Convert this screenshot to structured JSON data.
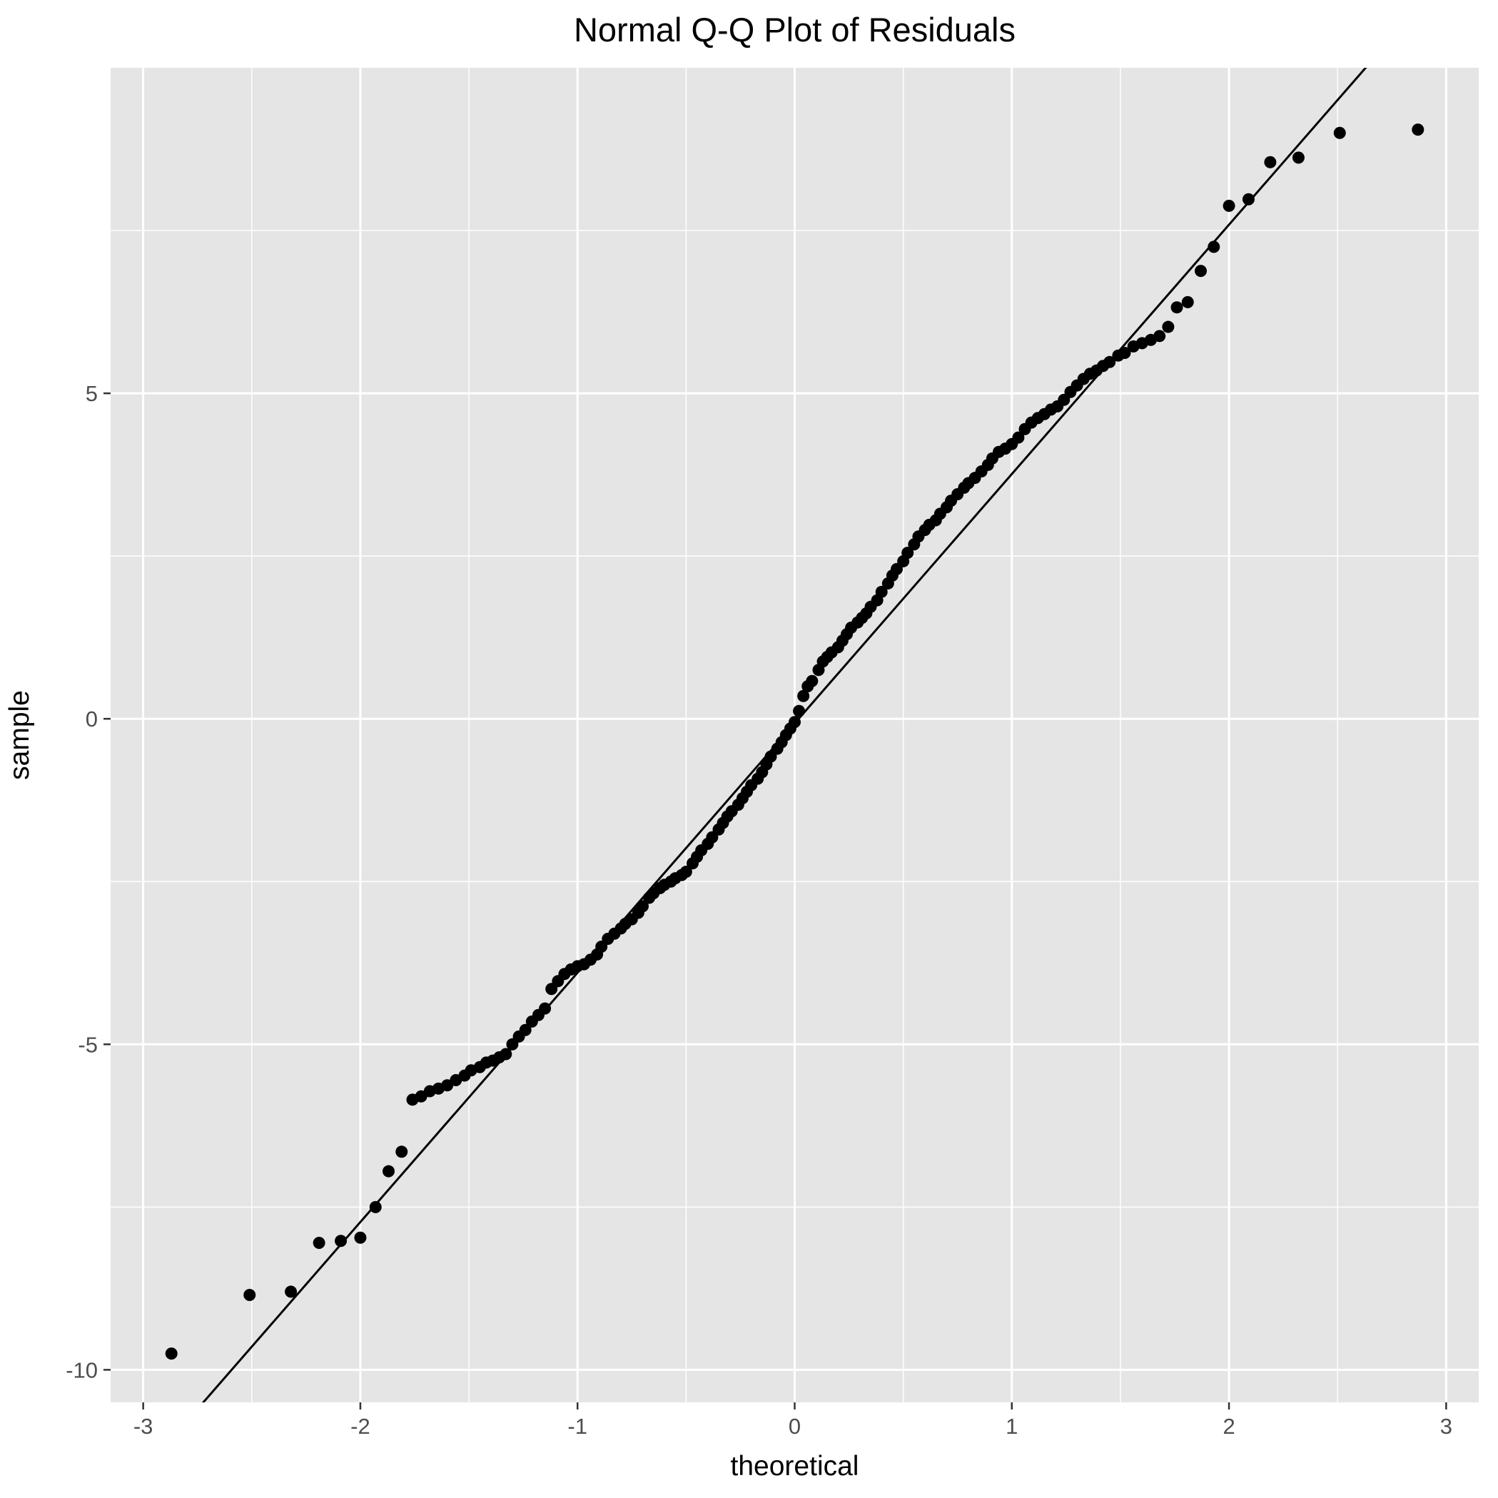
{
  "chart_data": {
    "type": "scatter",
    "title": "Normal Q-Q Plot of Residuals",
    "xlabel": "theoretical",
    "ylabel": "sample",
    "xlim": [
      -3.15,
      3.15
    ],
    "ylim": [
      -10.5,
      10.0
    ],
    "x_ticks": [
      -3,
      -2,
      -1,
      0,
      1,
      2,
      3
    ],
    "x_tick_labels": [
      "-3",
      "-2",
      "-1",
      "0",
      "1",
      "2",
      "3"
    ],
    "y_ticks": [
      -10,
      -5,
      0,
      5
    ],
    "y_tick_labels": [
      "-10",
      "-5",
      "0",
      "5"
    ],
    "grid": true,
    "legend": "none",
    "reference_line": {
      "slope": 3.83,
      "intercept": -0.07
    },
    "colors": {
      "panel_background": "#e5e5e5",
      "grid": "#ffffff",
      "points": "#000000",
      "line": "#000000",
      "tick_label": "#4d4d4d"
    },
    "points": [
      [
        -2.87,
        -9.75
      ],
      [
        -2.51,
        -8.85
      ],
      [
        -2.32,
        -8.8
      ],
      [
        -2.19,
        -8.05
      ],
      [
        -2.09,
        -8.02
      ],
      [
        -2.0,
        -7.97
      ],
      [
        -1.93,
        -7.5
      ],
      [
        -1.87,
        -6.95
      ],
      [
        -1.81,
        -6.65
      ],
      [
        -1.76,
        -5.85
      ],
      [
        -1.72,
        -5.8
      ],
      [
        -1.68,
        -5.72
      ],
      [
        -1.64,
        -5.68
      ],
      [
        -1.6,
        -5.63
      ],
      [
        -1.56,
        -5.55
      ],
      [
        -1.52,
        -5.48
      ],
      [
        -1.49,
        -5.4
      ],
      [
        -1.45,
        -5.35
      ],
      [
        -1.42,
        -5.28
      ],
      [
        -1.39,
        -5.25
      ],
      [
        -1.36,
        -5.2
      ],
      [
        -1.33,
        -5.15
      ],
      [
        -1.3,
        -5.0
      ],
      [
        -1.27,
        -4.88
      ],
      [
        -1.24,
        -4.78
      ],
      [
        -1.21,
        -4.65
      ],
      [
        -1.18,
        -4.55
      ],
      [
        -1.15,
        -4.45
      ],
      [
        -1.12,
        -4.15
      ],
      [
        -1.09,
        -4.03
      ],
      [
        -1.06,
        -3.92
      ],
      [
        -1.03,
        -3.85
      ],
      [
        -1.0,
        -3.8
      ],
      [
        -0.97,
        -3.77
      ],
      [
        -0.94,
        -3.7
      ],
      [
        -0.91,
        -3.62
      ],
      [
        -0.89,
        -3.5
      ],
      [
        -0.86,
        -3.38
      ],
      [
        -0.83,
        -3.3
      ],
      [
        -0.8,
        -3.22
      ],
      [
        -0.78,
        -3.15
      ],
      [
        -0.75,
        -3.08
      ],
      [
        -0.72,
        -2.98
      ],
      [
        -0.7,
        -2.88
      ],
      [
        -0.67,
        -2.75
      ],
      [
        -0.65,
        -2.68
      ],
      [
        -0.62,
        -2.6
      ],
      [
        -0.6,
        -2.55
      ],
      [
        -0.57,
        -2.5
      ],
      [
        -0.55,
        -2.45
      ],
      [
        -0.52,
        -2.4
      ],
      [
        -0.5,
        -2.35
      ],
      [
        -0.47,
        -2.22
      ],
      [
        -0.45,
        -2.12
      ],
      [
        -0.43,
        -2.02
      ],
      [
        -0.4,
        -1.92
      ],
      [
        -0.38,
        -1.82
      ],
      [
        -0.35,
        -1.7
      ],
      [
        -0.33,
        -1.6
      ],
      [
        -0.31,
        -1.5
      ],
      [
        -0.29,
        -1.42
      ],
      [
        -0.26,
        -1.32
      ],
      [
        -0.24,
        -1.22
      ],
      [
        -0.22,
        -1.12
      ],
      [
        -0.2,
        -1.02
      ],
      [
        -0.17,
        -0.92
      ],
      [
        -0.15,
        -0.82
      ],
      [
        -0.13,
        -0.7
      ],
      [
        -0.11,
        -0.58
      ],
      [
        -0.08,
        -0.46
      ],
      [
        -0.06,
        -0.36
      ],
      [
        -0.04,
        -0.25
      ],
      [
        -0.02,
        -0.15
      ],
      [
        0.0,
        -0.05
      ],
      [
        0.02,
        0.12
      ],
      [
        0.04,
        0.35
      ],
      [
        0.06,
        0.5
      ],
      [
        0.08,
        0.58
      ],
      [
        0.11,
        0.75
      ],
      [
        0.13,
        0.88
      ],
      [
        0.15,
        0.95
      ],
      [
        0.17,
        1.02
      ],
      [
        0.2,
        1.1
      ],
      [
        0.22,
        1.2
      ],
      [
        0.24,
        1.3
      ],
      [
        0.26,
        1.4
      ],
      [
        0.29,
        1.48
      ],
      [
        0.31,
        1.55
      ],
      [
        0.33,
        1.62
      ],
      [
        0.35,
        1.72
      ],
      [
        0.38,
        1.82
      ],
      [
        0.4,
        1.95
      ],
      [
        0.43,
        2.08
      ],
      [
        0.45,
        2.2
      ],
      [
        0.47,
        2.3
      ],
      [
        0.5,
        2.42
      ],
      [
        0.52,
        2.55
      ],
      [
        0.55,
        2.68
      ],
      [
        0.57,
        2.8
      ],
      [
        0.6,
        2.9
      ],
      [
        0.62,
        2.98
      ],
      [
        0.65,
        3.05
      ],
      [
        0.67,
        3.15
      ],
      [
        0.7,
        3.25
      ],
      [
        0.72,
        3.35
      ],
      [
        0.75,
        3.45
      ],
      [
        0.78,
        3.55
      ],
      [
        0.8,
        3.62
      ],
      [
        0.83,
        3.7
      ],
      [
        0.86,
        3.8
      ],
      [
        0.89,
        3.9
      ],
      [
        0.91,
        4.0
      ],
      [
        0.94,
        4.1
      ],
      [
        0.97,
        4.15
      ],
      [
        1.0,
        4.22
      ],
      [
        1.03,
        4.32
      ],
      [
        1.06,
        4.45
      ],
      [
        1.09,
        4.55
      ],
      [
        1.12,
        4.62
      ],
      [
        1.15,
        4.68
      ],
      [
        1.18,
        4.75
      ],
      [
        1.21,
        4.8
      ],
      [
        1.24,
        4.9
      ],
      [
        1.27,
        5.02
      ],
      [
        1.3,
        5.12
      ],
      [
        1.33,
        5.22
      ],
      [
        1.36,
        5.3
      ],
      [
        1.39,
        5.35
      ],
      [
        1.42,
        5.42
      ],
      [
        1.45,
        5.48
      ],
      [
        1.49,
        5.58
      ],
      [
        1.52,
        5.62
      ],
      [
        1.56,
        5.72
      ],
      [
        1.6,
        5.77
      ],
      [
        1.64,
        5.82
      ],
      [
        1.68,
        5.88
      ],
      [
        1.72,
        6.02
      ],
      [
        1.76,
        6.32
      ],
      [
        1.81,
        6.4
      ],
      [
        1.87,
        6.88
      ],
      [
        1.93,
        7.25
      ],
      [
        2.0,
        7.88
      ],
      [
        2.09,
        7.98
      ],
      [
        2.19,
        8.55
      ],
      [
        2.32,
        8.62
      ],
      [
        2.51,
        9.0
      ],
      [
        2.87,
        9.05
      ]
    ]
  }
}
